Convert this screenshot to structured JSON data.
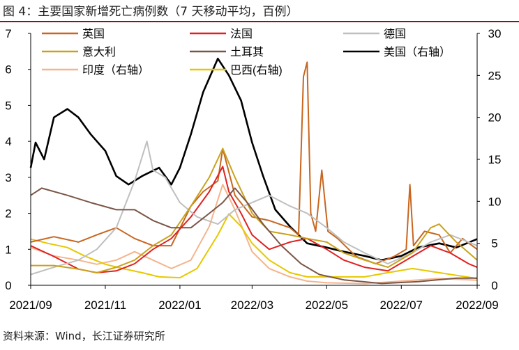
{
  "figure": {
    "title": "图 4：主要国家新增死亡病例数（7 天移动平均，百例）",
    "source": "资料来源：Wind，长江证券研究所"
  },
  "chart_data": {
    "type": "line",
    "title": "主要国家新增死亡病例数（7 天移动平均，百例）",
    "x_ticks": [
      "2021/09",
      "2021/11",
      "2022/01",
      "2022/03",
      "2022/05",
      "2022/07",
      "2022/09"
    ],
    "x_range": [
      "2021-09-01",
      "2022-09-01"
    ],
    "y_left": {
      "min": 0,
      "max": 7,
      "ticks": [
        0,
        1,
        2,
        3,
        4,
        5,
        6,
        7
      ]
    },
    "y_right": {
      "min": 0,
      "max": 30,
      "ticks": [
        0,
        5,
        10,
        15,
        20,
        25,
        30
      ]
    },
    "grid": false,
    "legend_position": "top",
    "series": [
      {
        "name": "英国",
        "color": "#c8661f",
        "axis": "left",
        "points": [
          [
            "2021-09-01",
            1.2
          ],
          [
            "2021-09-20",
            1.35
          ],
          [
            "2021-10-10",
            1.2
          ],
          [
            "2021-10-25",
            1.4
          ],
          [
            "2021-11-10",
            1.6
          ],
          [
            "2021-11-25",
            1.3
          ],
          [
            "2021-12-10",
            1.1
          ],
          [
            "2021-12-25",
            1.1
          ],
          [
            "2022-01-10",
            2.2
          ],
          [
            "2022-01-20",
            2.6
          ],
          [
            "2022-02-01",
            2.9
          ],
          [
            "2022-02-05",
            3.8
          ],
          [
            "2022-02-15",
            2.5
          ],
          [
            "2022-03-01",
            1.9
          ],
          [
            "2022-03-15",
            1.8
          ],
          [
            "2022-04-01",
            1.6
          ],
          [
            "2022-04-08",
            1.4
          ],
          [
            "2022-04-12",
            5.8
          ],
          [
            "2022-04-15",
            6.2
          ],
          [
            "2022-04-18",
            2.0
          ],
          [
            "2022-04-22",
            1.5
          ],
          [
            "2022-04-27",
            3.2
          ],
          [
            "2022-05-02",
            1.5
          ],
          [
            "2022-05-10",
            1.3
          ],
          [
            "2022-05-25",
            0.8
          ],
          [
            "2022-06-10",
            0.6
          ],
          [
            "2022-06-25",
            0.8
          ],
          [
            "2022-07-05",
            1.0
          ],
          [
            "2022-07-08",
            2.8
          ],
          [
            "2022-07-11",
            1.1
          ],
          [
            "2022-07-20",
            1.5
          ],
          [
            "2022-08-01",
            1.4
          ],
          [
            "2022-08-10",
            0.9
          ],
          [
            "2022-08-20",
            1.3
          ],
          [
            "2022-09-01",
            1.0
          ]
        ]
      },
      {
        "name": "法国",
        "color": "#e02020",
        "axis": "left",
        "points": [
          [
            "2021-09-01",
            1.1
          ],
          [
            "2021-09-20",
            0.8
          ],
          [
            "2021-10-10",
            0.45
          ],
          [
            "2021-10-25",
            0.35
          ],
          [
            "2021-11-10",
            0.4
          ],
          [
            "2021-11-25",
            0.6
          ],
          [
            "2021-12-10",
            1.0
          ],
          [
            "2021-12-25",
            1.3
          ],
          [
            "2022-01-10",
            1.9
          ],
          [
            "2022-01-25",
            2.6
          ],
          [
            "2022-02-05",
            3.3
          ],
          [
            "2022-02-10",
            2.6
          ],
          [
            "2022-02-20",
            2.0
          ],
          [
            "2022-03-01",
            1.4
          ],
          [
            "2022-03-15",
            1.0
          ],
          [
            "2022-04-01",
            1.2
          ],
          [
            "2022-04-15",
            1.3
          ],
          [
            "2022-05-01",
            1.0
          ],
          [
            "2022-05-15",
            0.7
          ],
          [
            "2022-06-01",
            0.5
          ],
          [
            "2022-06-20",
            0.4
          ],
          [
            "2022-07-10",
            0.8
          ],
          [
            "2022-07-25",
            1.1
          ],
          [
            "2022-08-10",
            0.9
          ],
          [
            "2022-08-25",
            0.6
          ],
          [
            "2022-09-01",
            0.5
          ]
        ]
      },
      {
        "name": "德国",
        "color": "#bfbfbf",
        "axis": "left",
        "points": [
          [
            "2021-09-01",
            0.3
          ],
          [
            "2021-09-20",
            0.5
          ],
          [
            "2021-10-10",
            0.7
          ],
          [
            "2021-10-25",
            1.0
          ],
          [
            "2021-11-10",
            1.6
          ],
          [
            "2021-11-25",
            2.9
          ],
          [
            "2021-12-05",
            4.0
          ],
          [
            "2021-12-10",
            3.2
          ],
          [
            "2021-12-20",
            3.0
          ],
          [
            "2022-01-01",
            2.3
          ],
          [
            "2022-01-15",
            1.9
          ],
          [
            "2022-02-01",
            1.7
          ],
          [
            "2022-02-15",
            2.1
          ],
          [
            "2022-03-01",
            2.3
          ],
          [
            "2022-03-15",
            2.5
          ],
          [
            "2022-04-01",
            2.2
          ],
          [
            "2022-04-15",
            2.0
          ],
          [
            "2022-05-01",
            1.6
          ],
          [
            "2022-05-15",
            1.2
          ],
          [
            "2022-06-01",
            0.9
          ],
          [
            "2022-06-20",
            0.6
          ],
          [
            "2022-07-10",
            0.9
          ],
          [
            "2022-07-25",
            1.2
          ],
          [
            "2022-08-10",
            1.4
          ],
          [
            "2022-08-25",
            1.2
          ],
          [
            "2022-09-01",
            1.1
          ]
        ]
      },
      {
        "name": "意大利",
        "color": "#c9a21c",
        "axis": "left",
        "points": [
          [
            "2021-09-01",
            0.55
          ],
          [
            "2021-09-20",
            0.55
          ],
          [
            "2021-10-10",
            0.45
          ],
          [
            "2021-10-25",
            0.35
          ],
          [
            "2021-11-10",
            0.5
          ],
          [
            "2021-11-25",
            0.7
          ],
          [
            "2021-12-10",
            1.1
          ],
          [
            "2021-12-25",
            1.4
          ],
          [
            "2022-01-10",
            2.2
          ],
          [
            "2022-01-25",
            3.0
          ],
          [
            "2022-02-05",
            3.8
          ],
          [
            "2022-02-15",
            3.0
          ],
          [
            "2022-03-01",
            2.0
          ],
          [
            "2022-03-15",
            1.5
          ],
          [
            "2022-04-01",
            1.4
          ],
          [
            "2022-04-15",
            1.3
          ],
          [
            "2022-05-01",
            1.2
          ],
          [
            "2022-05-15",
            0.9
          ],
          [
            "2022-06-01",
            0.7
          ],
          [
            "2022-06-20",
            0.5
          ],
          [
            "2022-07-10",
            0.9
          ],
          [
            "2022-07-25",
            1.6
          ],
          [
            "2022-08-01",
            1.7
          ],
          [
            "2022-08-15",
            1.2
          ],
          [
            "2022-09-01",
            0.7
          ]
        ]
      },
      {
        "name": "土耳其",
        "color": "#7a5546",
        "axis": "left",
        "points": [
          [
            "2021-09-01",
            2.5
          ],
          [
            "2021-09-10",
            2.7
          ],
          [
            "2021-10-01",
            2.5
          ],
          [
            "2021-10-20",
            2.3
          ],
          [
            "2021-11-10",
            2.1
          ],
          [
            "2021-11-25",
            2.1
          ],
          [
            "2021-12-10",
            1.8
          ],
          [
            "2021-12-25",
            1.6
          ],
          [
            "2022-01-10",
            1.6
          ],
          [
            "2022-01-25",
            2.0
          ],
          [
            "2022-02-05",
            2.3
          ],
          [
            "2022-02-15",
            2.7
          ],
          [
            "2022-02-25",
            2.3
          ],
          [
            "2022-03-10",
            1.7
          ],
          [
            "2022-03-25",
            1.1
          ],
          [
            "2022-04-10",
            0.6
          ],
          [
            "2022-04-25",
            0.3
          ],
          [
            "2022-05-15",
            0.15
          ],
          [
            "2022-06-15",
            0.05
          ],
          [
            "2022-07-15",
            0.1
          ],
          [
            "2022-08-15",
            0.2
          ],
          [
            "2022-09-01",
            0.2
          ]
        ]
      },
      {
        "name": "美国（右轴）",
        "color": "#000000",
        "axis": "right",
        "points": [
          [
            "2021-09-01",
            14
          ],
          [
            "2021-09-05",
            17
          ],
          [
            "2021-09-12",
            15
          ],
          [
            "2021-09-20",
            20
          ],
          [
            "2021-10-01",
            21
          ],
          [
            "2021-10-10",
            20
          ],
          [
            "2021-10-20",
            18
          ],
          [
            "2021-11-01",
            16
          ],
          [
            "2021-11-10",
            13
          ],
          [
            "2021-11-20",
            12
          ],
          [
            "2021-12-01",
            13
          ],
          [
            "2021-12-15",
            14
          ],
          [
            "2021-12-25",
            12
          ],
          [
            "2022-01-01",
            14
          ],
          [
            "2022-01-10",
            18
          ],
          [
            "2022-01-20",
            23
          ],
          [
            "2022-02-01",
            27
          ],
          [
            "2022-02-10",
            25
          ],
          [
            "2022-02-20",
            22
          ],
          [
            "2022-03-01",
            17
          ],
          [
            "2022-03-10",
            13
          ],
          [
            "2022-03-20",
            9
          ],
          [
            "2022-04-01",
            7
          ],
          [
            "2022-04-15",
            5
          ],
          [
            "2022-05-01",
            4.5
          ],
          [
            "2022-05-15",
            4
          ],
          [
            "2022-06-01",
            3.5
          ],
          [
            "2022-06-15",
            3
          ],
          [
            "2022-07-01",
            3.5
          ],
          [
            "2022-07-15",
            4.5
          ],
          [
            "2022-08-01",
            5
          ],
          [
            "2022-08-15",
            4.5
          ],
          [
            "2022-09-01",
            5.5
          ]
        ]
      },
      {
        "name": "印度（右轴）",
        "color": "#f5b48c",
        "axis": "right",
        "points": [
          [
            "2021-09-01",
            4.5
          ],
          [
            "2021-09-20",
            3.5
          ],
          [
            "2021-10-10",
            3
          ],
          [
            "2021-10-25",
            2.5
          ],
          [
            "2021-11-10",
            3
          ],
          [
            "2021-11-25",
            4
          ],
          [
            "2021-12-10",
            3
          ],
          [
            "2021-12-25",
            2
          ],
          [
            "2022-01-10",
            3
          ],
          [
            "2022-01-25",
            7
          ],
          [
            "2022-02-05",
            12
          ],
          [
            "2022-02-15",
            9
          ],
          [
            "2022-03-01",
            4
          ],
          [
            "2022-03-15",
            2
          ],
          [
            "2022-04-01",
            1
          ],
          [
            "2022-04-15",
            0.5
          ],
          [
            "2022-05-01",
            0.3
          ],
          [
            "2022-06-01",
            0.2
          ],
          [
            "2022-07-01",
            0.5
          ],
          [
            "2022-08-01",
            0.8
          ],
          [
            "2022-09-01",
            0.6
          ]
        ]
      },
      {
        "name": "巴西(右轴)",
        "color": "#e6c800",
        "axis": "right",
        "points": [
          [
            "2021-09-01",
            5.5
          ],
          [
            "2021-09-15",
            5
          ],
          [
            "2021-10-01",
            4.5
          ],
          [
            "2021-10-15",
            3.5
          ],
          [
            "2021-11-01",
            2.5
          ],
          [
            "2021-11-15",
            2.0
          ],
          [
            "2021-12-01",
            1.5
          ],
          [
            "2021-12-15",
            1.0
          ],
          [
            "2022-01-01",
            0.9
          ],
          [
            "2022-01-15",
            2
          ],
          [
            "2022-02-01",
            6
          ],
          [
            "2022-02-10",
            8.5
          ],
          [
            "2022-02-20",
            7
          ],
          [
            "2022-03-01",
            5
          ],
          [
            "2022-03-15",
            3
          ],
          [
            "2022-04-01",
            1.5
          ],
          [
            "2022-04-15",
            1
          ],
          [
            "2022-05-01",
            1
          ],
          [
            "2022-06-01",
            1
          ],
          [
            "2022-06-20",
            1.5
          ],
          [
            "2022-07-10",
            2
          ],
          [
            "2022-08-01",
            1.5
          ],
          [
            "2022-09-01",
            0.8
          ]
        ]
      }
    ]
  }
}
